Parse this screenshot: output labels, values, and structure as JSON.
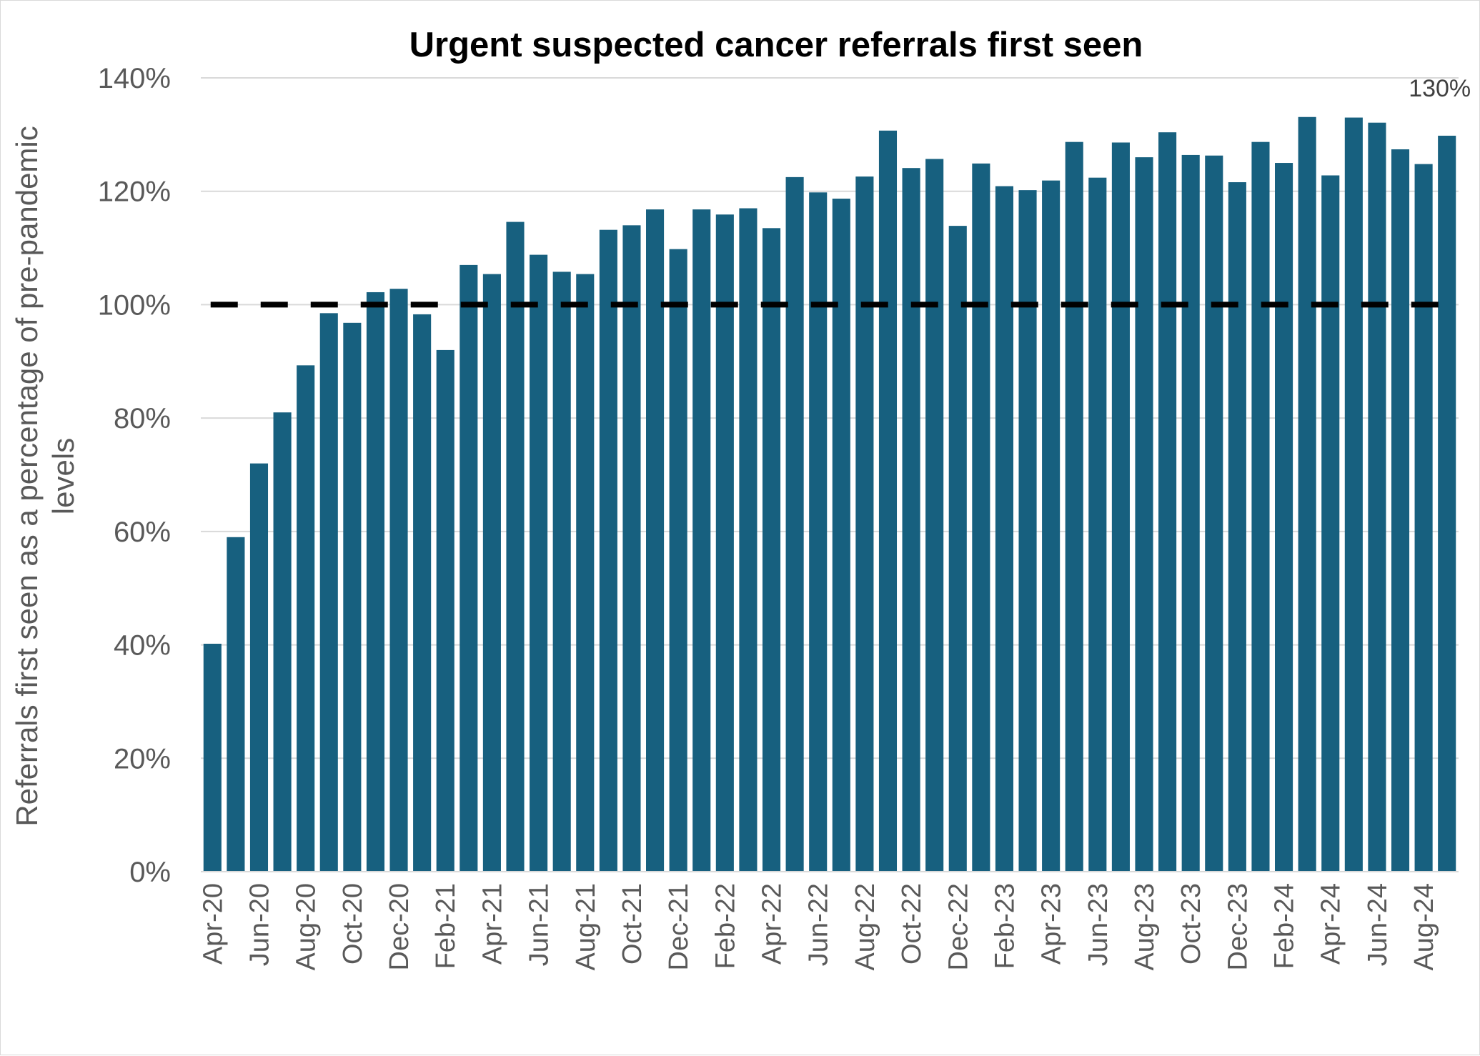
{
  "chart_data": {
    "type": "bar",
    "title": "Urgent suspected cancer referrals first seen",
    "ylabel": [
      "Referrals first seen as a percentage of pre-pandemic",
      "levels"
    ],
    "xlabel": "",
    "ylim": [
      0,
      140
    ],
    "yticks": [
      0,
      20,
      40,
      60,
      80,
      100,
      120,
      140
    ],
    "ytick_labels": [
      "0%",
      "20%",
      "40%",
      "60%",
      "80%",
      "100%",
      "120%",
      "140%"
    ],
    "grid": true,
    "categories": [
      "Apr-20",
      "May-20",
      "Jun-20",
      "Jul-20",
      "Aug-20",
      "Sep-20",
      "Oct-20",
      "Nov-20",
      "Dec-20",
      "Jan-21",
      "Feb-21",
      "Mar-21",
      "Apr-21",
      "May-21",
      "Jun-21",
      "Jul-21",
      "Aug-21",
      "Sep-21",
      "Oct-21",
      "Nov-21",
      "Dec-21",
      "Jan-22",
      "Feb-22",
      "Mar-22",
      "Apr-22",
      "May-22",
      "Jun-22",
      "Jul-22",
      "Aug-22",
      "Sep-22",
      "Oct-22",
      "Nov-22",
      "Dec-22",
      "Jan-23",
      "Feb-23",
      "Mar-23",
      "Apr-23",
      "May-23",
      "Jun-23",
      "Jul-23",
      "Aug-23",
      "Sep-23",
      "Oct-23",
      "Nov-23",
      "Dec-23",
      "Jan-24",
      "Feb-24",
      "Mar-24",
      "Apr-24",
      "May-24",
      "Jun-24",
      "Jul-24",
      "Aug-24",
      "Sep-24"
    ],
    "x_tick_labels": [
      "Apr-20",
      "",
      "Jun-20",
      "",
      "Aug-20",
      "",
      "Oct-20",
      "",
      "Dec-20",
      "",
      "Feb-21",
      "",
      "Apr-21",
      "",
      "Jun-21",
      "",
      "Aug-21",
      "",
      "Oct-21",
      "",
      "Dec-21",
      "",
      "Feb-22",
      "",
      "Apr-22",
      "",
      "Jun-22",
      "",
      "Aug-22",
      "",
      "Oct-22",
      "",
      "Dec-22",
      "",
      "Feb-23",
      "",
      "Apr-23",
      "",
      "Jun-23",
      "",
      "Aug-23",
      "",
      "Oct-23",
      "",
      "Dec-23",
      "",
      "Feb-24",
      "",
      "Apr-24",
      "",
      "Jun-24",
      "",
      "Aug-24",
      ""
    ],
    "values": [
      40.2,
      59.0,
      72.0,
      81.0,
      89.3,
      98.5,
      96.8,
      102.2,
      102.8,
      98.3,
      92.0,
      107.0,
      105.4,
      114.6,
      108.8,
      105.8,
      105.4,
      113.2,
      114.0,
      116.8,
      109.8,
      116.8,
      115.9,
      117.0,
      113.5,
      122.5,
      119.8,
      118.7,
      122.6,
      130.7,
      124.1,
      125.7,
      113.9,
      124.9,
      120.9,
      120.2,
      121.9,
      128.7,
      122.4,
      128.6,
      126.0,
      130.4,
      126.4,
      126.3,
      121.6,
      128.7,
      125.0,
      133.1,
      122.8,
      133.0,
      132.1,
      127.4,
      124.8,
      129.8
    ],
    "reference_line": {
      "value": 100,
      "style": "dashed",
      "color": "#000000"
    },
    "data_labels": [
      {
        "index": 53,
        "text": "130%"
      }
    ],
    "bar_color": "#17607f",
    "legend": "none"
  }
}
